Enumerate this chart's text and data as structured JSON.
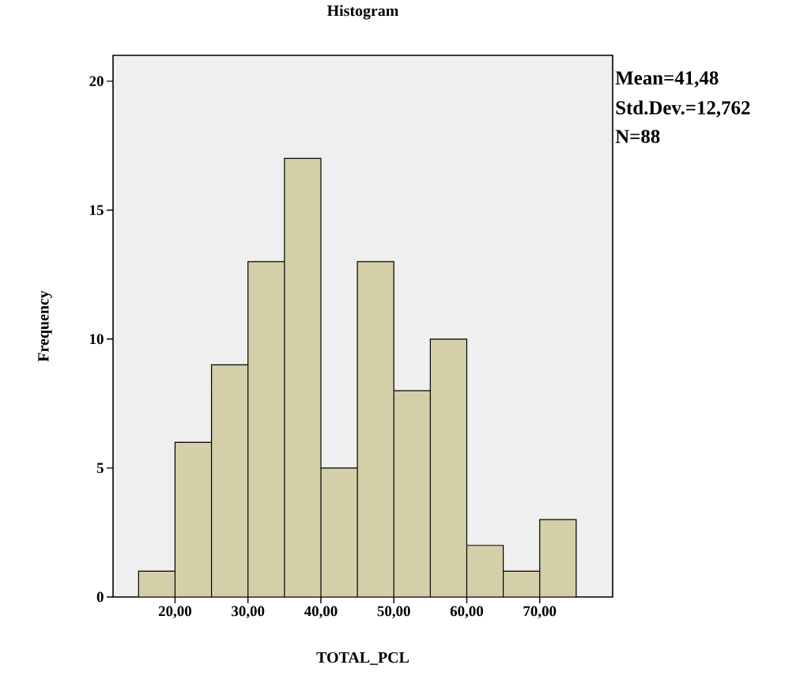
{
  "chart_data": {
    "type": "histogram",
    "title": "Histogram",
    "xlabel": "TOTAL_PCL",
    "ylabel": "Frequency",
    "bins": [
      15,
      20,
      25,
      30,
      35,
      40,
      45,
      50,
      55,
      60,
      65,
      70,
      75
    ],
    "values": [
      1,
      6,
      9,
      13,
      17,
      5,
      13,
      8,
      10,
      2,
      1,
      3
    ],
    "color": "#d4cfa8",
    "xlim": [
      11.5,
      80
    ],
    "ylim": [
      0,
      21
    ],
    "xticks": [
      {
        "value": 20,
        "label": "20,00"
      },
      {
        "value": 30,
        "label": "30,00"
      },
      {
        "value": 40,
        "label": "40,00"
      },
      {
        "value": 50,
        "label": "50,00"
      },
      {
        "value": 60,
        "label": "60,00"
      },
      {
        "value": 70,
        "label": "70,00"
      }
    ],
    "yticks": [
      0,
      5,
      10,
      15,
      20
    ],
    "annotations": [
      "Mean=41,48",
      "Std.Dev.=12,762",
      "N=88"
    ]
  }
}
